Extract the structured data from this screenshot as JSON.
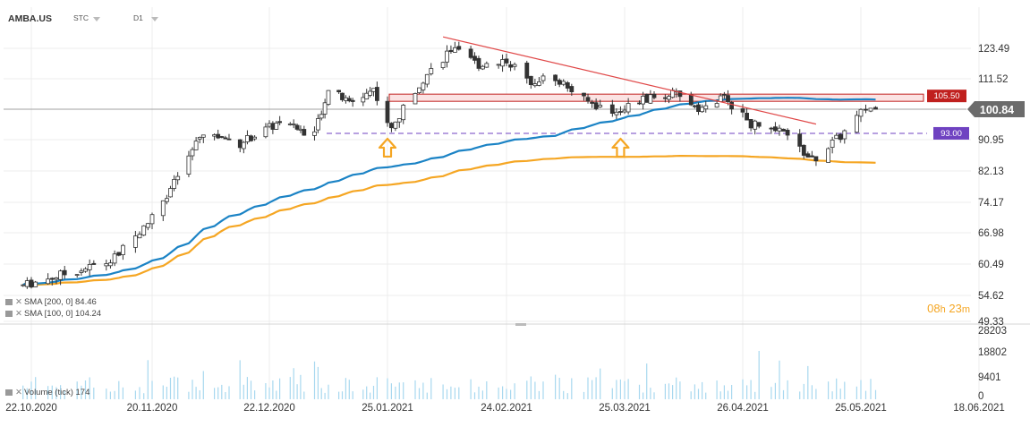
{
  "header": {
    "symbol": "AMBA.US",
    "type_label": "STC",
    "interval": "D1"
  },
  "indicators": {
    "sma200": {
      "label": "SMA [200,  0]",
      "value": "84.46"
    },
    "sma100": {
      "label": "SMA [100,  0]",
      "value": "104.24"
    },
    "volume": {
      "label": "Volume  (tick)",
      "value": "174"
    }
  },
  "timer": {
    "hours": "08",
    "h": "h",
    "minutes": "23",
    "m": "m"
  },
  "colors": {
    "bull": "#ffffff",
    "bear": "#333333",
    "sma100": "#1b83c5",
    "sma200": "#f5a623",
    "trendline": "#e04848",
    "resistance": "#c0201e",
    "support": "#6f42c1",
    "price_tag": "#6b6b6b",
    "volume": "#a8d8ef",
    "arrow": "#f5a623"
  },
  "chart_data": [
    {
      "type": "candlestick",
      "title": "AMBA.US D1",
      "y_ticks": [
        "123.49",
        "111.52",
        "100.84",
        "90.95",
        "82.13",
        "74.17",
        "66.98",
        "60.49",
        "54.62",
        "49.33"
      ],
      "x_ticks": [
        "22.10.2020",
        "20.11.2020",
        "22.12.2020",
        "25.01.2021",
        "24.02.2021",
        "25.03.2021",
        "26.04.2021",
        "25.05.2021",
        "18.06.2021"
      ],
      "ylim": [
        49.33,
        128
      ],
      "last_price": 100.84,
      "levels": [
        {
          "label": "105.50",
          "value": 105.5,
          "kind": "resistance"
        },
        {
          "label": "93.00",
          "value": 93.0,
          "kind": "support"
        }
      ],
      "sma_series": [
        {
          "name": "SMA 100",
          "period": 100,
          "last": 104.24
        },
        {
          "name": "SMA 200",
          "period": 200,
          "last": 84.46
        }
      ],
      "trendline": {
        "from": {
          "date": "2021-02-08",
          "value": 128.0
        },
        "to": {
          "date": "2021-05-14",
          "value": 96.0
        }
      },
      "arrows_up": [
        {
          "date": "2021-01-25",
          "value": 93.0
        },
        {
          "date": "2021-03-24",
          "value": 93.0
        }
      ],
      "key_path": [
        [
          "2020-10-20",
          56.5
        ],
        [
          "2020-11-10",
          61.0
        ],
        [
          "2020-11-18",
          68.0
        ],
        [
          "2020-11-26",
          79.0
        ],
        [
          "2020-12-04",
          93.0
        ],
        [
          "2020-12-14",
          90.0
        ],
        [
          "2020-12-24",
          96.0
        ],
        [
          "2021-01-04",
          93.0
        ],
        [
          "2021-01-08",
          108.0
        ],
        [
          "2021-01-14",
          103.0
        ],
        [
          "2021-01-21",
          108.0
        ],
        [
          "2021-01-26",
          94.0
        ],
        [
          "2021-02-02",
          110.0
        ],
        [
          "2021-02-10",
          123.0
        ],
        [
          "2021-02-17",
          117.0
        ],
        [
          "2021-02-24",
          119.0
        ],
        [
          "2021-03-01",
          111.0
        ],
        [
          "2021-03-08",
          112.0
        ],
        [
          "2021-03-15",
          104.0
        ],
        [
          "2021-03-22",
          100.0
        ],
        [
          "2021-03-30",
          104.0
        ],
        [
          "2021-04-07",
          106.0
        ],
        [
          "2021-04-15",
          101.0
        ],
        [
          "2021-04-21",
          105.0
        ],
        [
          "2021-04-28",
          96.0
        ],
        [
          "2021-05-06",
          93.0
        ],
        [
          "2021-05-13",
          85.0
        ],
        [
          "2021-05-20",
          92.0
        ],
        [
          "2021-05-26",
          101.0
        ],
        [
          "2021-05-28",
          101.5
        ]
      ]
    },
    {
      "type": "bar",
      "title": "Volume (tick)",
      "y_ticks": [
        "28203",
        "18802",
        "9401",
        "0"
      ],
      "ylim": [
        0,
        28203
      ],
      "last_value": 174
    }
  ]
}
